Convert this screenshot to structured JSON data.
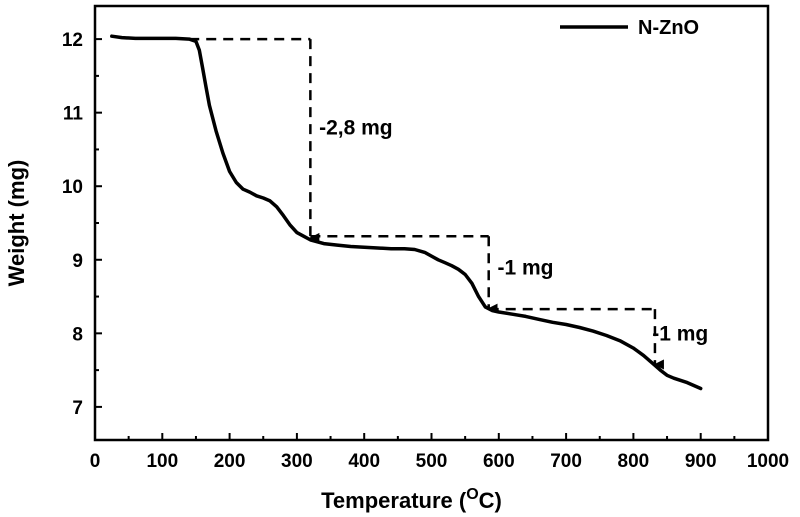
{
  "chart_data": {
    "type": "line",
    "title": "",
    "xlabel": "Temperature (",
    "xlabel_unit_sup": "O",
    "xlabel_unit_after": "C)",
    "ylabel": "Weight (mg)",
    "xlim": [
      0,
      1000
    ],
    "ylim": [
      6.55,
      12.45
    ],
    "x_ticks": [
      "0",
      "100",
      "200",
      "300",
      "400",
      "500",
      "600",
      "700",
      "800",
      "900",
      "1000"
    ],
    "y_ticks": [
      "7",
      "8",
      "9",
      "10",
      "11",
      "12"
    ],
    "grid": false,
    "legend_position": "top-right",
    "series": [
      {
        "name": "N-ZnO",
        "color": "#000000",
        "x": [
          25,
          40,
          60,
          80,
          100,
          120,
          140,
          150,
          155,
          160,
          165,
          170,
          180,
          190,
          200,
          210,
          220,
          230,
          240,
          250,
          260,
          270,
          280,
          290,
          300,
          310,
          320,
          340,
          360,
          380,
          400,
          420,
          440,
          460,
          475,
          490,
          500,
          510,
          520,
          530,
          540,
          550,
          560,
          570,
          580,
          590,
          600,
          620,
          640,
          660,
          680,
          700,
          720,
          740,
          760,
          780,
          800,
          815,
          830,
          840,
          850,
          860,
          880,
          900
        ],
        "y": [
          12.04,
          12.02,
          12.01,
          12.01,
          12.01,
          12.01,
          12.0,
          11.97,
          11.85,
          11.6,
          11.35,
          11.1,
          10.75,
          10.45,
          10.2,
          10.05,
          9.96,
          9.92,
          9.87,
          9.84,
          9.8,
          9.72,
          9.6,
          9.47,
          9.37,
          9.32,
          9.27,
          9.22,
          9.2,
          9.18,
          9.17,
          9.16,
          9.15,
          9.15,
          9.14,
          9.1,
          9.05,
          9.0,
          8.96,
          8.92,
          8.87,
          8.8,
          8.68,
          8.5,
          8.36,
          8.31,
          8.29,
          8.26,
          8.23,
          8.19,
          8.15,
          8.12,
          8.08,
          8.03,
          7.97,
          7.9,
          7.8,
          7.7,
          7.58,
          7.5,
          7.43,
          7.39,
          7.33,
          7.25
        ]
      }
    ],
    "annotations": [
      {
        "text": "-2,8 mg",
        "x_from": 320,
        "y_top": 12.0,
        "y_bottom": 9.27,
        "x_left": 140,
        "label_x": 333,
        "label_y": 10.7
      },
      {
        "text": "-1 mg",
        "x_from": 585,
        "y_top": 9.32,
        "y_bottom": 8.31,
        "x_left": 320,
        "label_x": 598,
        "label_y": 8.8
      },
      {
        "text": "-1 mg",
        "x_from": 832,
        "y_top": 8.33,
        "y_bottom": 7.55,
        "x_left": 585,
        "label_x": 828,
        "label_y": 7.9
      }
    ]
  }
}
